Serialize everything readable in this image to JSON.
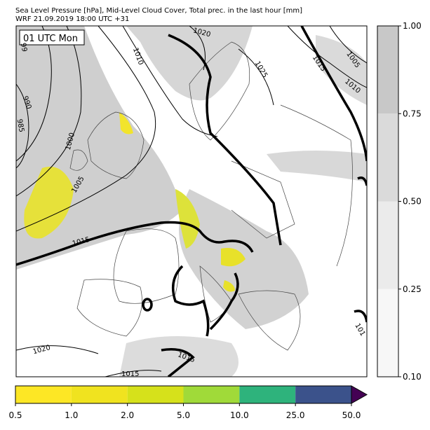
{
  "header": {
    "title": "Sea Level Pressure [hPa], Mid-Level Cloud Cover, Total prec. in the last hour [mm]",
    "subtitle": "WRF 21.09.2019 18:00 UTC +31"
  },
  "map": {
    "time_label": "01 UTC Mon",
    "isobar_labels": [
      "1020",
      "1010",
      "1025",
      "1015",
      "1005",
      "1010",
      "990",
      "985",
      "99",
      "1000",
      "1005",
      "1015",
      "1020",
      "1015",
      "1015",
      "101"
    ]
  },
  "cloud_colorbar": {
    "ticks": [
      "0.10",
      "0.25",
      "0.50",
      "0.75",
      "1.00"
    ],
    "colors": [
      "#f7f7f7",
      "#ebebeb",
      "#dadada",
      "#c8c8c8"
    ]
  },
  "precip_colorbar": {
    "ticks": [
      "0.5",
      "1.0",
      "2.0",
      "5.0",
      "10.0",
      "25.0",
      "50.0"
    ],
    "colors": [
      "#fde725",
      "#f0e31f",
      "#d6e11b",
      "#a0da39",
      "#2eb37c",
      "#3b528b"
    ],
    "extend_color": "#440154"
  }
}
